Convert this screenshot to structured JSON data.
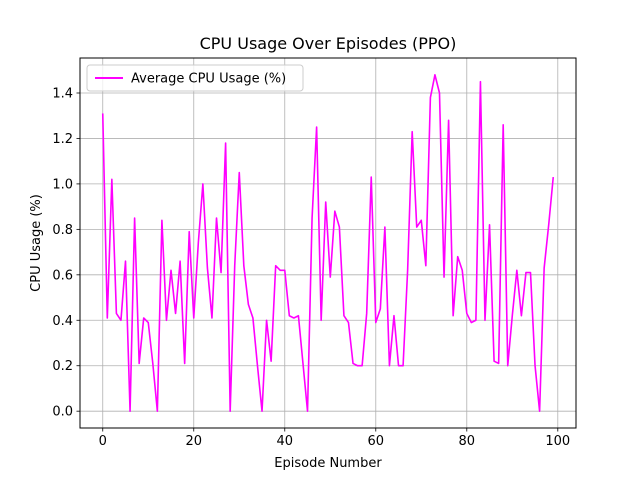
{
  "chart_data": {
    "type": "line",
    "title": "CPU Usage Over Episodes (PPO)",
    "xlabel": "Episode Number",
    "ylabel": "CPU Usage (%)",
    "xlim": [
      -5,
      104
    ],
    "ylim": [
      -0.074,
      1.554
    ],
    "xticks": [
      0,
      20,
      40,
      60,
      80,
      100
    ],
    "yticks": [
      0.0,
      0.2,
      0.4,
      0.6,
      0.8,
      1.0,
      1.2,
      1.4
    ],
    "xtick_labels": [
      "0",
      "20",
      "40",
      "60",
      "80",
      "100"
    ],
    "ytick_labels": [
      "0.0",
      "0.2",
      "0.4",
      "0.6",
      "0.8",
      "1.0",
      "1.2",
      "1.4"
    ],
    "grid": true,
    "legend_placement": "upper-left",
    "series": [
      {
        "name": "Average CPU Usage (%)",
        "color": "#ff00ff",
        "x": [
          0,
          1,
          2,
          3,
          4,
          5,
          6,
          7,
          8,
          9,
          10,
          11,
          12,
          13,
          14,
          15,
          16,
          17,
          18,
          19,
          20,
          21,
          22,
          23,
          24,
          25,
          26,
          27,
          28,
          29,
          30,
          31,
          32,
          33,
          34,
          35,
          36,
          37,
          38,
          39,
          40,
          41,
          42,
          43,
          44,
          45,
          46,
          47,
          48,
          49,
          50,
          51,
          52,
          53,
          54,
          55,
          56,
          57,
          58,
          59,
          60,
          61,
          62,
          63,
          64,
          65,
          66,
          67,
          68,
          69,
          70,
          71,
          72,
          73,
          74,
          75,
          76,
          77,
          78,
          79,
          80,
          81,
          82,
          83,
          84,
          85,
          86,
          87,
          88,
          89,
          90,
          91,
          92,
          93,
          94,
          95,
          96,
          97,
          98,
          99
        ],
        "values": [
          1.31,
          0.41,
          1.02,
          0.43,
          0.4,
          0.66,
          0.0,
          0.85,
          0.21,
          0.41,
          0.39,
          0.21,
          0.0,
          0.84,
          0.4,
          0.62,
          0.43,
          0.66,
          0.21,
          0.79,
          0.41,
          0.74,
          1.0,
          0.63,
          0.41,
          0.85,
          0.61,
          1.18,
          0.0,
          0.64,
          1.05,
          0.64,
          0.47,
          0.41,
          0.2,
          0.0,
          0.4,
          0.22,
          0.64,
          0.62,
          0.62,
          0.42,
          0.41,
          0.42,
          0.21,
          0.0,
          0.85,
          1.25,
          0.4,
          0.92,
          0.59,
          0.88,
          0.81,
          0.42,
          0.39,
          0.21,
          0.2,
          0.2,
          0.43,
          1.03,
          0.39,
          0.45,
          0.81,
          0.2,
          0.42,
          0.2,
          0.2,
          0.62,
          1.23,
          0.81,
          0.84,
          0.64,
          1.38,
          1.48,
          1.4,
          0.59,
          1.28,
          0.42,
          0.68,
          0.62,
          0.43,
          0.39,
          0.4,
          1.45,
          0.4,
          0.82,
          0.22,
          0.21,
          1.26,
          0.2,
          0.42,
          0.62,
          0.42,
          0.61,
          0.61,
          0.2,
          0.0,
          0.63,
          0.82,
          1.03
        ]
      }
    ]
  }
}
